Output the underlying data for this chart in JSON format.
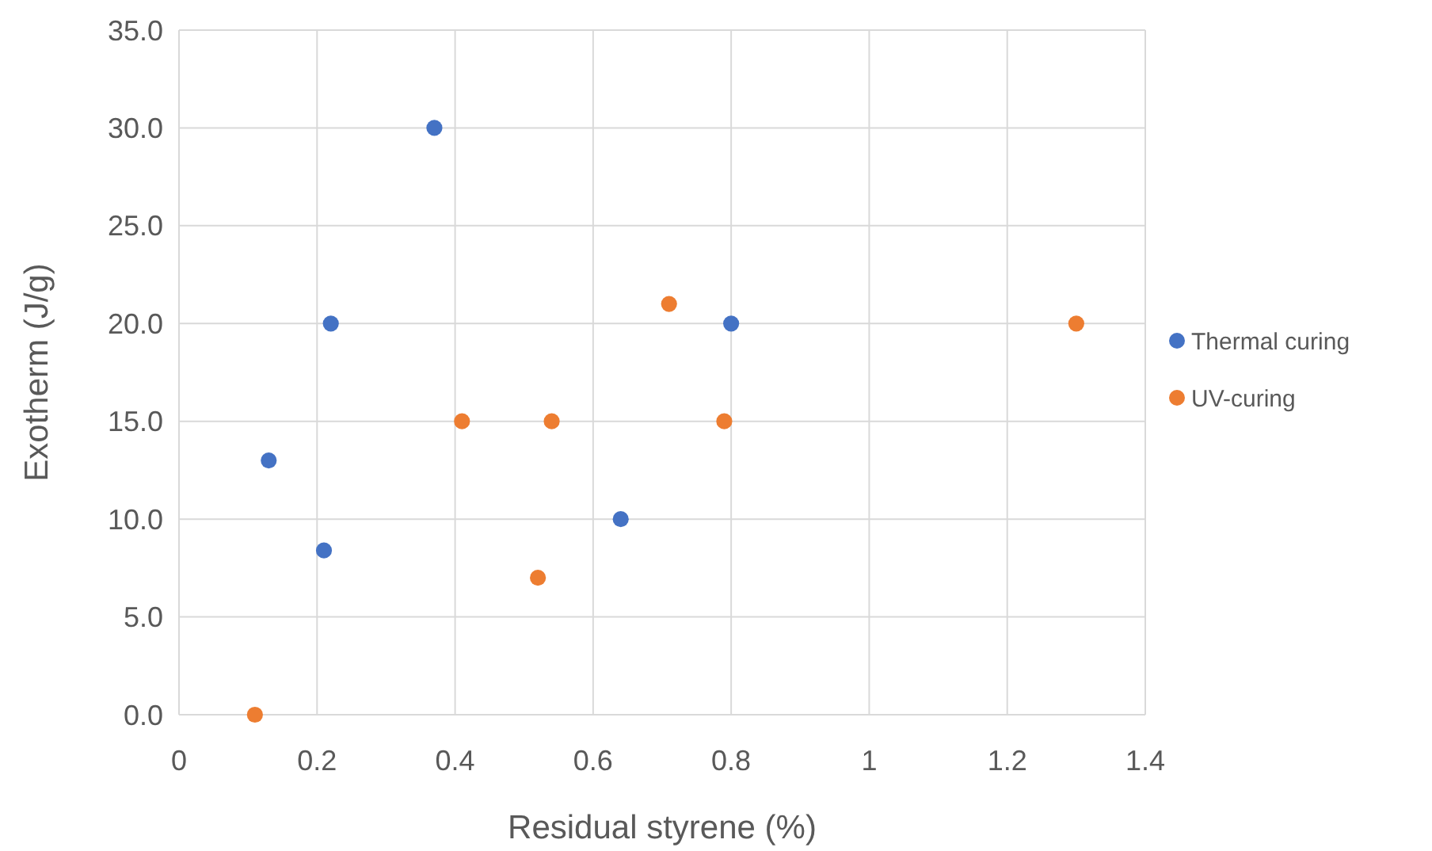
{
  "chart_data": {
    "type": "scatter",
    "xlabel": "Residual styrene (%)",
    "ylabel": "Exotherm (J/g)",
    "series": [
      {
        "name": "Thermal curing",
        "color": "#4472c4",
        "x": [
          0.13,
          0.21,
          0.22,
          0.37,
          0.64,
          0.8
        ],
        "values": [
          13,
          8.4,
          20,
          30,
          10,
          20
        ]
      },
      {
        "name": "UV-curing",
        "color": "#ed7d31",
        "x": [
          0.11,
          0.41,
          0.52,
          0.54,
          0.71,
          0.79,
          1.3
        ],
        "values": [
          0,
          15,
          7,
          15,
          21,
          15,
          20
        ]
      }
    ],
    "xlim": [
      0,
      1.4
    ],
    "xticks": [
      0,
      0.2,
      0.4,
      0.6,
      0.8,
      1,
      1.2,
      1.4
    ],
    "ylim": [
      0,
      35
    ],
    "yticks": [
      {
        "value": 0,
        "label": "0.0"
      },
      {
        "value": 5,
        "label": "5.0"
      },
      {
        "value": 10,
        "label": "10.0"
      },
      {
        "value": 15,
        "label": "15.0"
      },
      {
        "value": 20,
        "label": "20.0"
      },
      {
        "value": 25,
        "label": "25.0"
      },
      {
        "value": 30,
        "label": "30.0"
      },
      {
        "value": 35,
        "label": "35.0"
      }
    ],
    "grid": true,
    "legend": "right",
    "marker": "circle"
  }
}
